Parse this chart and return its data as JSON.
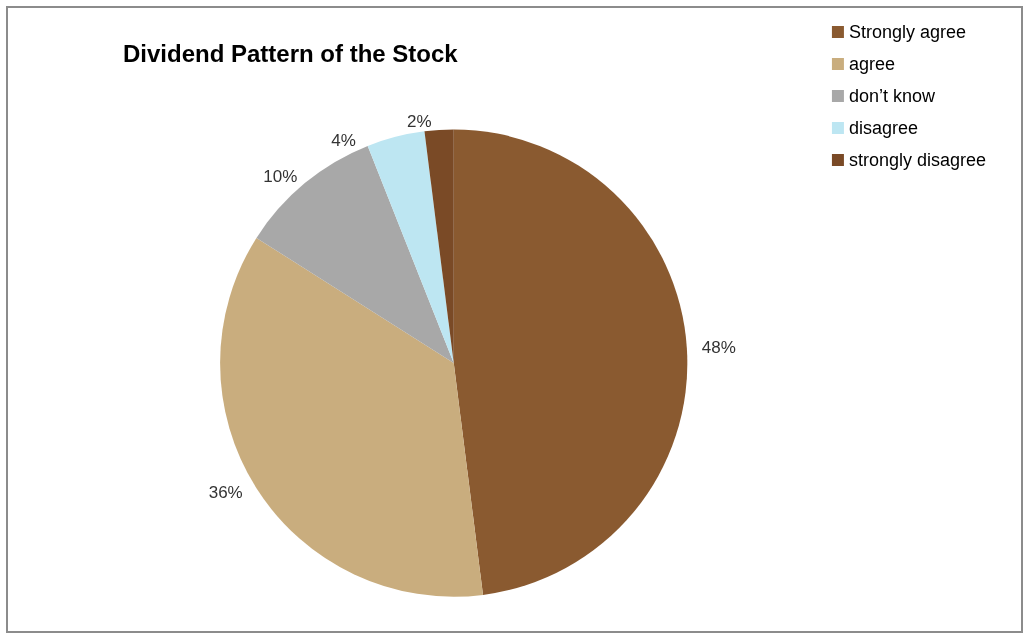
{
  "chart_data": {
    "type": "pie",
    "title": "Dividend Pattern of the Stock",
    "categories": [
      "Strongly agree",
      "agree",
      "don’t know",
      "disagree",
      "strongly disagree"
    ],
    "values": [
      48,
      36,
      10,
      4,
      2
    ],
    "value_labels": [
      "48%",
      "36%",
      "10%",
      "4%",
      "2%"
    ],
    "colors": [
      "#8a5a30",
      "#c9ad7e",
      "#a8a8a8",
      "#bde6f2",
      "#7a4a26"
    ],
    "legend": "top right"
  }
}
